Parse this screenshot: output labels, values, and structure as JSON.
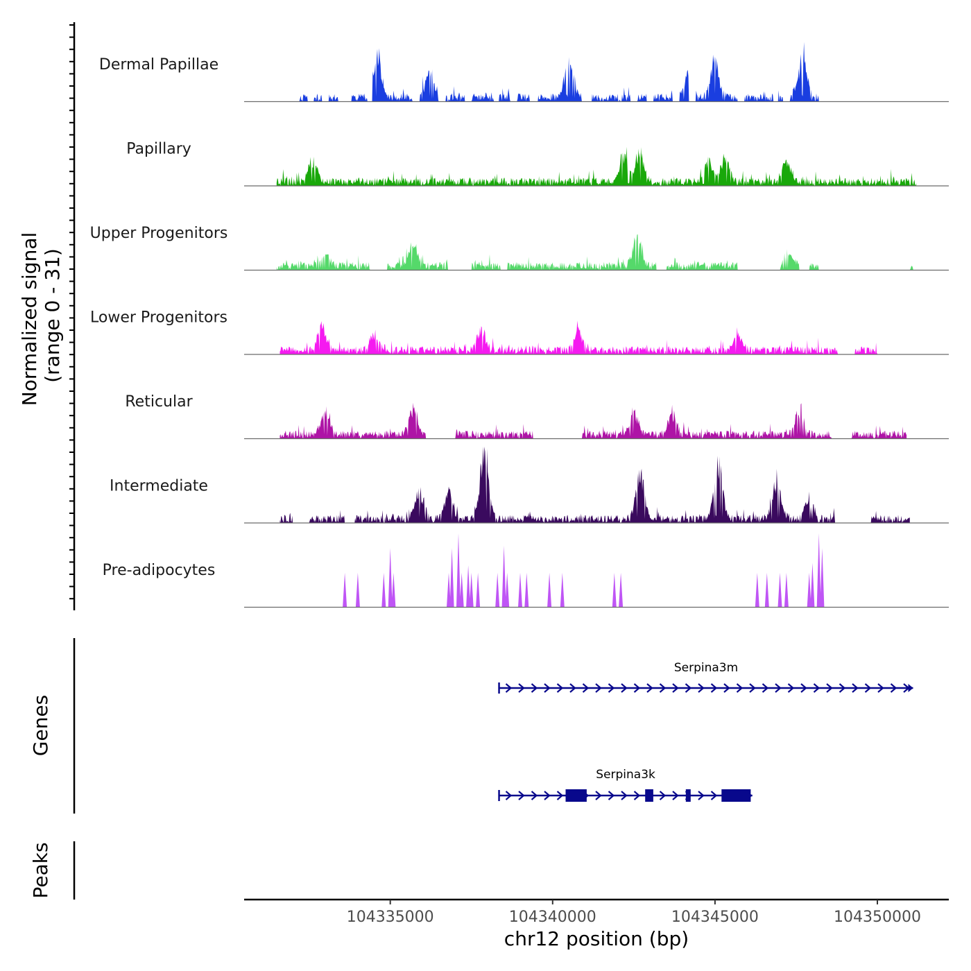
{
  "chart_data": {
    "type": "area",
    "title": "",
    "y_axis_title_line1": "Normalized signal",
    "y_axis_title_line2": "(range 0 - 31)",
    "ylim": [
      0,
      31
    ],
    "xlabel": "chr12 position (bp)",
    "x_range": [
      104330500,
      104352200
    ],
    "x_ticks": [
      104335000,
      104340000,
      104345000,
      104350000
    ],
    "x_tick_labels": [
      "104335000",
      "104340000",
      "104345000",
      "104350000"
    ],
    "tracks": [
      {
        "name": "Dermal Papillae",
        "color": "#1A3EE0",
        "data_start": 104332200,
        "data_end": 104348200,
        "seed": 11,
        "peaks": [
          [
            104334600,
            19
          ],
          [
            104340500,
            20
          ],
          [
            104345000,
            19
          ],
          [
            104347700,
            20
          ],
          [
            104336200,
            12
          ],
          [
            104344200,
            11
          ]
        ],
        "gaps": [
          [
            104332450,
            104332650
          ],
          [
            104332900,
            104333100
          ],
          [
            104333400,
            104333800
          ],
          [
            104334300,
            104334450
          ],
          [
            104335700,
            104335900
          ],
          [
            104336500,
            104336700
          ],
          [
            104337300,
            104337500
          ],
          [
            104338200,
            104338350
          ],
          [
            104338700,
            104338900
          ],
          [
            104339300,
            104339550
          ],
          [
            104340900,
            104341200
          ],
          [
            104342400,
            104342600
          ],
          [
            104342900,
            104343100
          ],
          [
            104343700,
            104343900
          ],
          [
            104344200,
            104344400
          ],
          [
            104345700,
            104345900
          ],
          [
            104346800,
            104346950
          ],
          [
            104347100,
            104347300
          ]
        ]
      },
      {
        "name": "Papillary",
        "color": "#19A80A",
        "data_start": 104331500,
        "data_end": 104351200,
        "seed": 23,
        "peaks": [
          [
            104332600,
            12
          ],
          [
            104342200,
            13
          ],
          [
            104342700,
            14
          ],
          [
            104344800,
            11
          ],
          [
            104345300,
            11
          ],
          [
            104347200,
            10
          ]
        ],
        "gaps": []
      },
      {
        "name": "Upper Progenitors",
        "color": "#55D96A",
        "data_start": 104331500,
        "data_end": 104351100,
        "seed": 37,
        "peaks": [
          [
            104335700,
            11
          ],
          [
            104342600,
            14
          ],
          [
            104347300,
            6
          ],
          [
            104333000,
            6
          ]
        ],
        "gaps": [
          [
            104334400,
            104334900
          ],
          [
            104336800,
            104337500
          ],
          [
            104338400,
            104338600
          ],
          [
            104343200,
            104343500
          ],
          [
            104345700,
            104347000
          ],
          [
            104347600,
            104347900
          ],
          [
            104348200,
            104351000
          ]
        ]
      },
      {
        "name": "Lower Progenitors",
        "color": "#F51AF0",
        "data_start": 104331600,
        "data_end": 104350000,
        "seed": 41,
        "peaks": [
          [
            104332900,
            12
          ],
          [
            104337800,
            10
          ],
          [
            104334500,
            8
          ],
          [
            104340800,
            9
          ],
          [
            104345700,
            8
          ]
        ],
        "gaps": [
          [
            104348800,
            104349300
          ]
        ]
      },
      {
        "name": "Reticular",
        "color": "#AE14A6",
        "data_start": 104331600,
        "data_end": 104350900,
        "seed": 53,
        "peaks": [
          [
            104333000,
            11
          ],
          [
            104335700,
            13
          ],
          [
            104343700,
            10
          ],
          [
            104347600,
            12
          ],
          [
            104342500,
            10
          ]
        ],
        "gaps": [
          [
            104336100,
            104337000
          ],
          [
            104339400,
            104340900
          ],
          [
            104348600,
            104349200
          ]
        ]
      },
      {
        "name": "Intermediate",
        "color": "#3A0A5E",
        "data_start": 104331600,
        "data_end": 104351000,
        "seed": 67,
        "peaks": [
          [
            104337900,
            33
          ],
          [
            104345100,
            27
          ],
          [
            104342700,
            23
          ],
          [
            104336800,
            12
          ],
          [
            104335900,
            14
          ],
          [
            104346900,
            19
          ],
          [
            104347900,
            10
          ]
        ],
        "gaps": [
          [
            104332000,
            104332500
          ],
          [
            104333600,
            104333900
          ],
          [
            104348700,
            104349800
          ]
        ]
      },
      {
        "name": "Pre-adipocytes",
        "color": "#BF55F5",
        "data_start": 104333600,
        "data_end": 104348300,
        "seed": 79,
        "spikes": [
          [
            104333600,
            14
          ],
          [
            104334000,
            14
          ],
          [
            104334800,
            14
          ],
          [
            104335000,
            24
          ],
          [
            104335100,
            14
          ],
          [
            104336800,
            14
          ],
          [
            104336900,
            24
          ],
          [
            104337100,
            30
          ],
          [
            104337200,
            14
          ],
          [
            104337400,
            17
          ],
          [
            104337500,
            14
          ],
          [
            104337700,
            14
          ],
          [
            104338300,
            14
          ],
          [
            104338500,
            25
          ],
          [
            104338600,
            14
          ],
          [
            104339000,
            14
          ],
          [
            104339200,
            14
          ],
          [
            104339900,
            14
          ],
          [
            104340300,
            14
          ],
          [
            104341900,
            14
          ],
          [
            104342100,
            14
          ],
          [
            104346300,
            14
          ],
          [
            104346600,
            14
          ],
          [
            104347000,
            14
          ],
          [
            104347200,
            14
          ],
          [
            104347900,
            14
          ],
          [
            104348000,
            18
          ],
          [
            104348200,
            30
          ],
          [
            104348300,
            24
          ]
        ]
      }
    ],
    "genes_label": "Genes",
    "peaks_label": "Peaks",
    "genes": [
      {
        "name": "Serpina3m",
        "start": 104338350,
        "end": 104351100,
        "row": 0,
        "exons": []
      },
      {
        "name": "Serpina3k",
        "start": 104338350,
        "end": 104346150,
        "row": 1,
        "exons": [
          [
            104340400,
            104341050
          ],
          [
            104342850,
            104343100
          ],
          [
            104344100,
            104344250
          ],
          [
            104345200,
            104346100
          ]
        ]
      }
    ],
    "gene_color": "#08088C"
  }
}
